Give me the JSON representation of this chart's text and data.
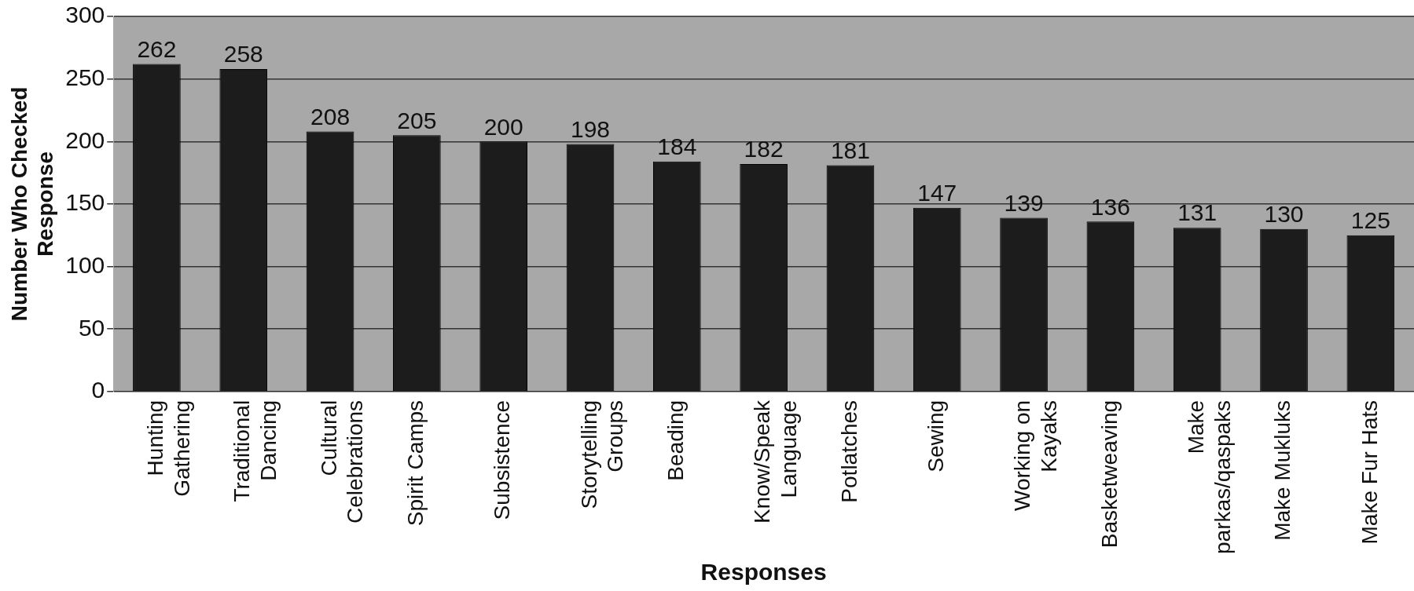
{
  "chart_data": {
    "type": "bar",
    "xlabel": "Responses",
    "ylabel": "Number Who Checked Response",
    "categories": [
      "Hunting Gathering",
      "Traditional Dancing",
      "Cultural Celebrations",
      "Spirit Camps",
      "Subsistence",
      "Storytelling Groups",
      "Beading",
      "Know/Speak Language",
      "Potlatches",
      "Sewing",
      "Working on Kayaks",
      "Basketweaving",
      "Make parkas/qaspaks",
      "Make Mukluks",
      "Make Fur Hats"
    ],
    "values": [
      262,
      258,
      208,
      205,
      200,
      198,
      184,
      182,
      181,
      147,
      139,
      136,
      131,
      130,
      125
    ],
    "color": "#1c1c1c",
    "ylim": [
      0,
      300
    ],
    "yticks": [
      0,
      50,
      100,
      150,
      200,
      250,
      300
    ],
    "grid": "y",
    "data_labels": true
  }
}
